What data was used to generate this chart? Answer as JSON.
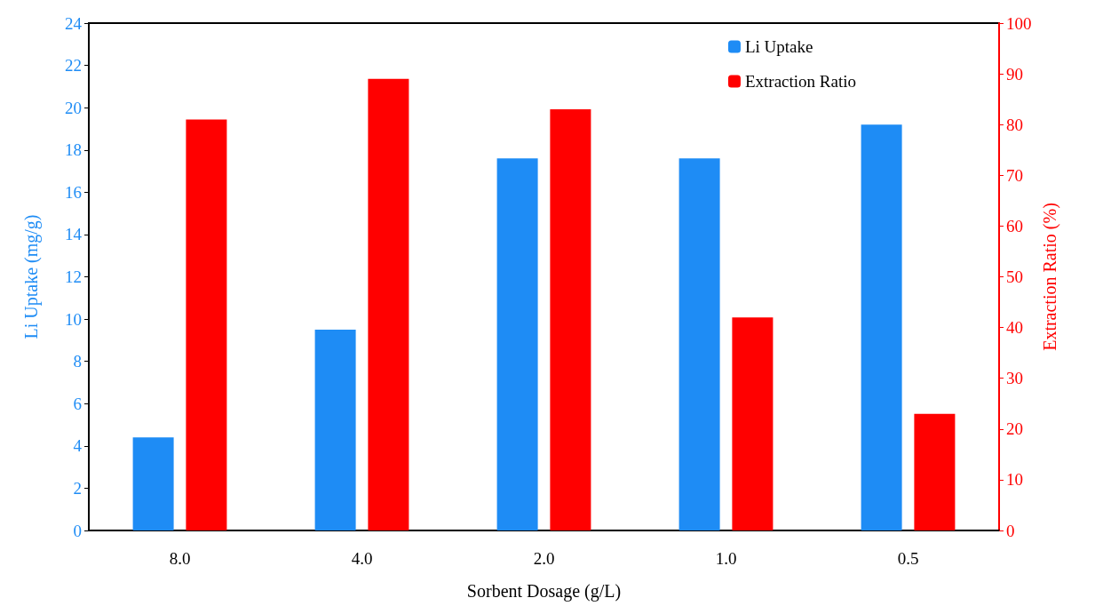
{
  "chart_data": {
    "type": "bar",
    "xlabel": "Sorbent Dosage (g/L)",
    "ylabel": "Li Uptake (mg/g)",
    "y2label": "Extraction Ratio (%)",
    "categories": [
      "8.0",
      "4.0",
      "2.0",
      "1.0",
      "0.5"
    ],
    "series": [
      {
        "name": "Li Uptake",
        "color": "#1e8cf5",
        "values": [
          4.4,
          9.5,
          17.6,
          17.6,
          19.2
        ]
      },
      {
        "name": "Extraction Ratio",
        "color": "#ff0000",
        "axis": "y2",
        "values": [
          81,
          89,
          83,
          42,
          23
        ]
      }
    ],
    "ylim": [
      0,
      24
    ],
    "yticks": [
      0,
      2,
      4,
      6,
      8,
      10,
      12,
      14,
      16,
      18,
      20,
      22,
      24
    ],
    "y2lim": [
      0,
      100
    ],
    "y2ticks": [
      0,
      10,
      20,
      30,
      40,
      50,
      60,
      70,
      80,
      90,
      100
    ],
    "grid": false,
    "legend": "top right"
  }
}
